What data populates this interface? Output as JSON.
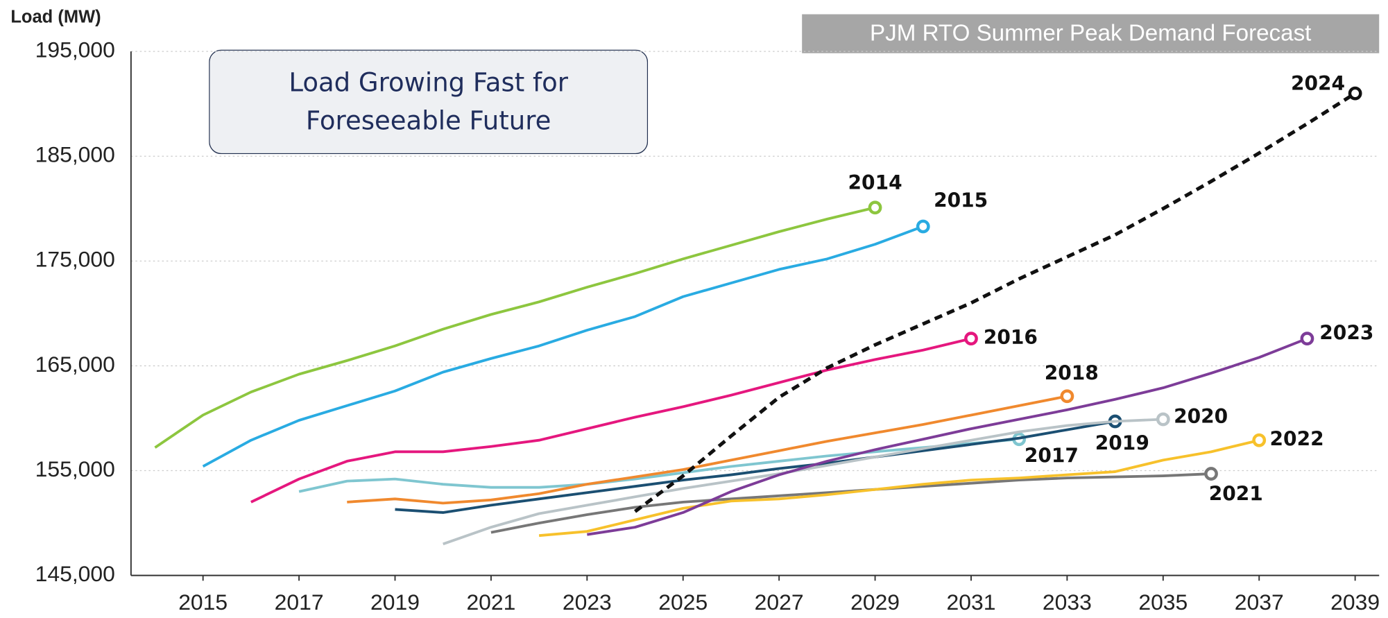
{
  "chart_data": {
    "type": "line",
    "title": "PJM RTO Summer Peak Demand Forecast",
    "y_label": "Load (MW)",
    "annotation": "Load Growing Fast for Foreseeable Future",
    "xlim": [
      2013.5,
      2039.5
    ],
    "xticks": [
      2015,
      2017,
      2019,
      2021,
      2023,
      2025,
      2027,
      2029,
      2031,
      2033,
      2035,
      2037,
      2039
    ],
    "ylim": [
      145000,
      195000
    ],
    "yticks": [
      {
        "value": 145000,
        "label": "145,000"
      },
      {
        "value": 155000,
        "label": "155,000"
      },
      {
        "value": 165000,
        "label": "165,000"
      },
      {
        "value": 175000,
        "label": "175,000"
      },
      {
        "value": 185000,
        "label": "185,000"
      },
      {
        "value": 195000,
        "label": "195,000"
      }
    ],
    "grid": true,
    "series": [
      {
        "name": "2014",
        "color": "#8dc63f",
        "x": [
          2014,
          2015,
          2016,
          2017,
          2018,
          2019,
          2020,
          2021,
          2022,
          2023,
          2024,
          2025,
          2026,
          2027,
          2028,
          2029
        ],
        "values": [
          157200,
          160300,
          162500,
          164200,
          165500,
          166900,
          168500,
          169900,
          171100,
          172500,
          173800,
          175200,
          176500,
          177800,
          179000,
          180100
        ]
      },
      {
        "name": "2015",
        "color": "#29abe2",
        "x": [
          2015,
          2016,
          2017,
          2018,
          2019,
          2020,
          2021,
          2022,
          2023,
          2024,
          2025,
          2026,
          2027,
          2028,
          2029,
          2030
        ],
        "values": [
          155400,
          157900,
          159800,
          161200,
          162600,
          164400,
          165700,
          166900,
          168400,
          169700,
          171600,
          172900,
          174200,
          175200,
          176600,
          178300
        ]
      },
      {
        "name": "2016",
        "color": "#e5177e",
        "x": [
          2016,
          2017,
          2018,
          2019,
          2020,
          2021,
          2022,
          2023,
          2024,
          2025,
          2026,
          2027,
          2028,
          2029,
          2030,
          2031
        ],
        "values": [
          152000,
          154200,
          155900,
          156800,
          156800,
          157300,
          157900,
          159000,
          160100,
          161100,
          162200,
          163400,
          164600,
          165600,
          166500,
          167600
        ]
      },
      {
        "name": "2017",
        "color": "#7fc6d0",
        "x": [
          2017,
          2018,
          2019,
          2020,
          2021,
          2022,
          2023,
          2024,
          2025,
          2026,
          2027,
          2028,
          2029,
          2030,
          2031,
          2032
        ],
        "values": [
          153000,
          154000,
          154200,
          153700,
          153400,
          153400,
          153700,
          154200,
          154800,
          155400,
          155900,
          156400,
          156800,
          157200,
          157600,
          158000
        ]
      },
      {
        "name": "2018",
        "color": "#f0892e",
        "x": [
          2018,
          2019,
          2020,
          2021,
          2022,
          2023,
          2024,
          2025,
          2026,
          2027,
          2028,
          2029,
          2030,
          2031,
          2032,
          2033
        ],
        "values": [
          152000,
          152300,
          151900,
          152200,
          152800,
          153700,
          154400,
          155100,
          156000,
          156900,
          157800,
          158600,
          159400,
          160300,
          161200,
          162100
        ]
      },
      {
        "name": "2019",
        "color": "#1b4f72",
        "x": [
          2019,
          2020,
          2021,
          2022,
          2023,
          2024,
          2025,
          2026,
          2027,
          2028,
          2029,
          2030,
          2031,
          2032,
          2033,
          2034
        ],
        "values": [
          151300,
          151000,
          151700,
          152300,
          152900,
          153500,
          154100,
          154600,
          155200,
          155700,
          156300,
          156900,
          157500,
          158100,
          158900,
          159700
        ]
      },
      {
        "name": "2020",
        "color": "#b9c3c7",
        "x": [
          2020,
          2021,
          2022,
          2023,
          2024,
          2025,
          2026,
          2027,
          2028,
          2029,
          2030,
          2031,
          2032,
          2033,
          2034,
          2035
        ],
        "values": [
          148000,
          149600,
          150900,
          151700,
          152500,
          153300,
          154000,
          154700,
          155500,
          156300,
          157100,
          157900,
          158700,
          159300,
          159700,
          159900
        ]
      },
      {
        "name": "2021",
        "color": "#777777",
        "x": [
          2021,
          2022,
          2023,
          2024,
          2025,
          2026,
          2027,
          2028,
          2029,
          2030,
          2031,
          2032,
          2033,
          2034,
          2035,
          2036
        ],
        "values": [
          149100,
          150000,
          150800,
          151500,
          152000,
          152300,
          152600,
          152900,
          153200,
          153500,
          153800,
          154100,
          154300,
          154400,
          154500,
          154700
        ]
      },
      {
        "name": "2022",
        "color": "#f7c12b",
        "x": [
          2022,
          2023,
          2024,
          2025,
          2026,
          2027,
          2028,
          2029,
          2030,
          2031,
          2032,
          2033,
          2034,
          2035,
          2036,
          2037
        ],
        "values": [
          148800,
          149200,
          150300,
          151400,
          152100,
          152300,
          152700,
          153200,
          153700,
          154100,
          154300,
          154600,
          154900,
          156000,
          156800,
          157900
        ]
      },
      {
        "name": "2023",
        "color": "#7d3c98",
        "x": [
          2023,
          2024,
          2025,
          2026,
          2027,
          2028,
          2029,
          2030,
          2031,
          2032,
          2033,
          2034,
          2035,
          2036,
          2037,
          2038
        ],
        "values": [
          148900,
          149600,
          151000,
          153000,
          154600,
          155900,
          157000,
          158000,
          159000,
          159900,
          160800,
          161800,
          162900,
          164300,
          165800,
          167600
        ]
      },
      {
        "name": "2024",
        "color": "#111111",
        "dashed": true,
        "x": [
          2024,
          2025,
          2026,
          2027,
          2028,
          2029,
          2030,
          2031,
          2032,
          2033,
          2034,
          2035,
          2036,
          2037,
          2038,
          2039
        ],
        "values": [
          151100,
          154500,
          158300,
          162000,
          164800,
          167000,
          169000,
          171000,
          173300,
          175400,
          177500,
          180000,
          182600,
          185300,
          188100,
          191000
        ]
      }
    ]
  }
}
